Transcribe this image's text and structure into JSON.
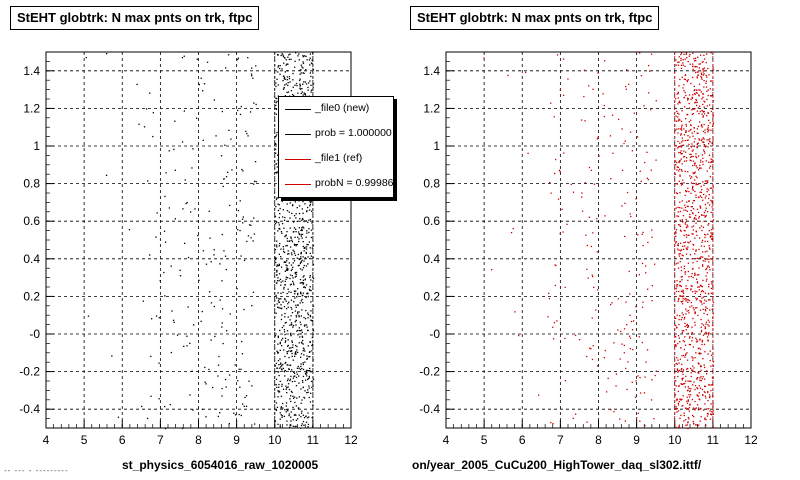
{
  "chart_data": [
    {
      "type": "scatter",
      "title": "StEHT globtrk: N max pnts on trk, ftpc",
      "xlabel": "st_physics_6054016_raw_1020005",
      "ylabel": "",
      "xlim": [
        4,
        12
      ],
      "ylim": [
        -0.5,
        1.5
      ],
      "xticks": [
        "4",
        "5",
        "6",
        "7",
        "8",
        "9",
        "10",
        "11",
        "12"
      ],
      "yticks": [
        "-0.4",
        "-0.2",
        "-0",
        "0.2",
        "0.4",
        "0.6",
        "0.8",
        "1",
        "1.2",
        "1.4"
      ],
      "grid": true,
      "marker_color": "#000000",
      "series": [
        {
          "points_per_column": [
            2,
            8,
            40,
            60,
            100,
            150,
            500,
            500
          ],
          "columns": [
            5,
            6,
            7,
            8,
            9,
            10,
            10.5,
            11
          ]
        }
      ]
    },
    {
      "type": "scatter",
      "title": "StEHT globtrk: N max pnts on trk, ftpc",
      "xlabel": "on/year_2005_CuCu200_HighTower_daq_sl302.ittf/",
      "ylabel": "",
      "xlim": [
        4,
        12
      ],
      "ylim": [
        -0.5,
        1.5
      ],
      "xticks": [
        "4",
        "5",
        "6",
        "7",
        "8",
        "9",
        "10",
        "11",
        "12"
      ],
      "yticks": [
        "-0.4",
        "-0.2",
        "-0",
        "0.2",
        "0.4",
        "0.6",
        "0.8",
        "1",
        "1.2",
        "1.4"
      ],
      "grid": true,
      "marker_color": "#cc0000",
      "series": [
        {
          "points_per_column": [
            2,
            8,
            40,
            60,
            100,
            150,
            500,
            500
          ],
          "columns": [
            5,
            6,
            7,
            8,
            9,
            10,
            10.5,
            11
          ]
        }
      ]
    }
  ],
  "legend": {
    "entries": [
      {
        "label": "_file0 (new)",
        "color": "#000000"
      },
      {
        "label": "prob = 1.000000",
        "color": "#000000"
      },
      {
        "label": "_file1 (ref)",
        "color": "#cc0000"
      },
      {
        "label": "probN = 0.999860",
        "color": "#cc0000"
      }
    ]
  },
  "footer": "-- --- - ---------"
}
